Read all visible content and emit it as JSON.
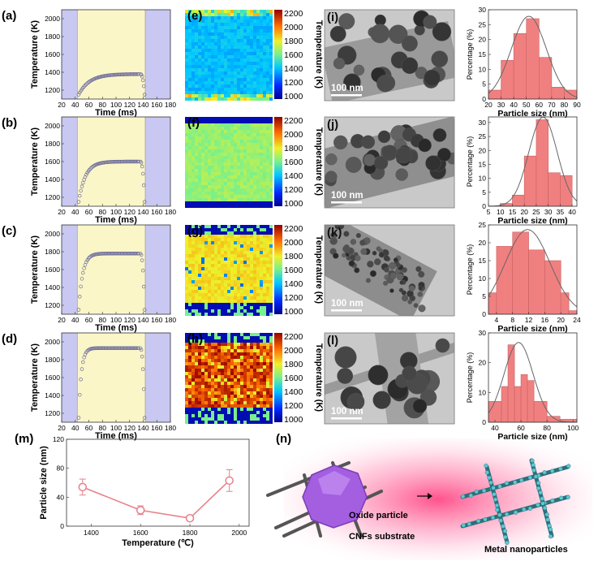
{
  "figure": {
    "temperature_panels": [
      {
        "label": "(a)",
        "steady_temp_K": 1380,
        "ramp_tau_ms": 16,
        "xlabel": "Time (ms)",
        "ylabel": "Temperature (K)"
      },
      {
        "label": "(b)",
        "steady_temp_K": 1600,
        "ramp_tau_ms": 10,
        "xlabel": "Time (ms)",
        "ylabel": "Temperature (K)"
      },
      {
        "label": "(c)",
        "steady_temp_K": 1780,
        "ramp_tau_ms": 6,
        "xlabel": "Time (ms)",
        "ylabel": "Temperature (K)"
      },
      {
        "label": "(d)",
        "steady_temp_K": 1930,
        "ramp_tau_ms": 4,
        "xlabel": "Time (ms)",
        "ylabel": "Temperature (K)"
      }
    ],
    "temp_axis": {
      "xticks": [
        "20",
        "40",
        "60",
        "80",
        "100",
        "120",
        "140",
        "160",
        "180"
      ],
      "yticks": [
        "1200",
        "1400",
        "1600",
        "1800",
        "2000"
      ],
      "xlim": [
        20,
        180
      ],
      "ylim": [
        1100,
        2100
      ],
      "pulse_on_ms": 43,
      "pulse_off_ms": 143
    },
    "maps": [
      {
        "label": "(e)",
        "base": "#3ec8f0"
      },
      {
        "label": "(f)",
        "base": "#9ce07a"
      },
      {
        "label": "(g)",
        "base": "#f7e84c"
      },
      {
        "label": "(h)",
        "base": "#b01010"
      }
    ],
    "colorbar": {
      "ticks": [
        "2200",
        "2000",
        "1800",
        "1600",
        "1400",
        "1200",
        "1000"
      ],
      "label": "Temperature (K)"
    },
    "tem": [
      {
        "label": "(i)",
        "scale": "100 nm"
      },
      {
        "label": "(j)",
        "scale": "100 nm"
      },
      {
        "label": "(k)",
        "scale": "100 nm"
      },
      {
        "label": "(l)",
        "scale": "100 nm"
      }
    ],
    "histograms": [
      {
        "xticks": [
          "20",
          "30",
          "40",
          "50",
          "60",
          "70",
          "80",
          "90"
        ],
        "xlim": [
          20,
          90
        ],
        "yticks": [
          "0",
          "5",
          "10",
          "15",
          "20",
          "25",
          "30"
        ],
        "ylim": [
          0,
          30
        ],
        "edges": [
          20,
          30,
          40,
          50,
          60,
          70,
          80,
          90
        ],
        "values": [
          3,
          13,
          22,
          27,
          14,
          4,
          3
        ]
      },
      {
        "xticks": [
          "5",
          "10",
          "15",
          "20",
          "25",
          "30",
          "35",
          "40"
        ],
        "xlim": [
          5,
          42
        ],
        "yticks": [
          "0",
          "5",
          "10",
          "15",
          "20",
          "25",
          "30"
        ],
        "ylim": [
          0,
          32
        ],
        "edges": [
          10,
          15,
          20,
          25,
          30,
          35,
          40
        ],
        "values": [
          1,
          4,
          18,
          31,
          12,
          11
        ]
      },
      {
        "xticks": [
          "4",
          "8",
          "12",
          "16",
          "20",
          "24"
        ],
        "xlim": [
          2,
          24
        ],
        "yticks": [
          "0",
          "5",
          "10",
          "15",
          "20",
          "25"
        ],
        "ylim": [
          0,
          25
        ],
        "edges": [
          2,
          4,
          8,
          12,
          16,
          20,
          22,
          24
        ],
        "values": [
          6,
          19,
          23,
          18,
          15,
          6,
          1
        ]
      },
      {
        "xticks": [
          "40",
          "60",
          "80",
          "100"
        ],
        "xlim": [
          35,
          103
        ],
        "yticks": [
          "0",
          "10",
          "20",
          "30"
        ],
        "ylim": [
          0,
          30
        ],
        "edges": [
          35,
          45,
          50,
          55,
          60,
          65,
          70,
          80,
          90,
          103
        ],
        "values": [
          7,
          12,
          26,
          12,
          16,
          14,
          7,
          2,
          1
        ]
      }
    ],
    "hist_labels": {
      "xlabel": "Particle size (nm)",
      "ylabel": "Percentage (%)"
    },
    "summary_chart": {
      "label": "(m)",
      "xlabel": "Temperature (℃)",
      "ylabel": "Particle size (nm)",
      "xticks": [
        "1400",
        "1600",
        "1800",
        "2000"
      ],
      "yticks": [
        "0",
        "40",
        "80",
        "120"
      ],
      "xlim": [
        1300,
        2040
      ],
      "ylim": [
        0,
        120
      ]
    },
    "schematic": {
      "label": "(n)",
      "oxide": "Oxide particle",
      "substrate": "CNFs substrate",
      "metal": "Metal nanoparticles"
    }
  },
  "chart_data": {
    "type": "scatter",
    "title": "",
    "xlabel": "Temperature (℃)",
    "ylabel": "Particle size (nm)",
    "x": [
      1365,
      1600,
      1800,
      1960
    ],
    "y": [
      54,
      22,
      11,
      63
    ],
    "yerr": [
      11,
      6,
      3,
      15
    ],
    "xlim": [
      1300,
      2040
    ],
    "ylim": [
      0,
      120
    ],
    "color": "#e8808a"
  }
}
